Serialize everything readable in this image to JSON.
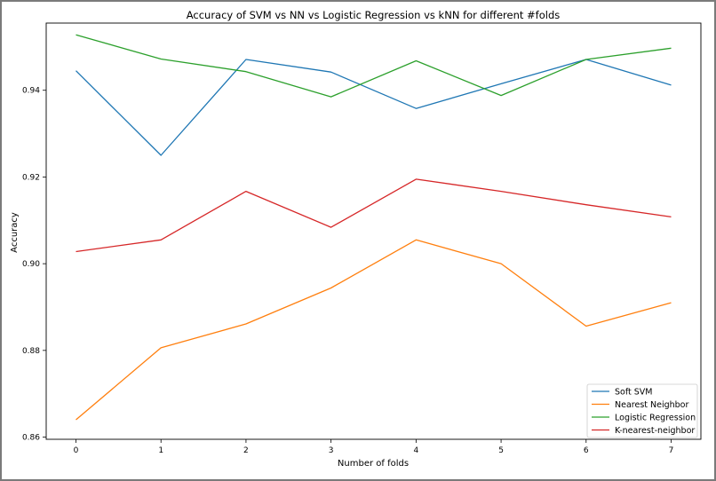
{
  "chart_data": {
    "type": "line",
    "title": "Accuracy of SVM vs NN vs Logistic Regression vs kNN for different #folds",
    "xlabel": "Number of folds",
    "ylabel": "Accuracy",
    "x": [
      0,
      1,
      2,
      3,
      4,
      5,
      6,
      7
    ],
    "xticks": [
      "0",
      "1",
      "2",
      "3",
      "4",
      "5",
      "6",
      "7"
    ],
    "yticks": [
      "0.86",
      "0.88",
      "0.90",
      "0.92",
      "0.94"
    ],
    "ytick_values": [
      0.86,
      0.88,
      0.9,
      0.92,
      0.94
    ],
    "xlim": [
      -0.35,
      7.35
    ],
    "ylim": [
      0.8595,
      0.9555
    ],
    "grid": false,
    "legend_position": "lower-right",
    "series": [
      {
        "name": "Soft SVM",
        "color": "#1f77b4",
        "values": [
          0.9445,
          0.925,
          0.9471,
          0.9442,
          0.9358,
          0.9415,
          0.9471,
          0.9412
        ]
      },
      {
        "name": "Nearest Neighbor",
        "color": "#ff7f0e",
        "values": [
          0.864,
          0.8806,
          0.8861,
          0.8944,
          0.9055,
          0.9,
          0.8856,
          0.891
        ]
      },
      {
        "name": "Logistic Regression",
        "color": "#2ca02c",
        "values": [
          0.9528,
          0.9472,
          0.9443,
          0.9385,
          0.9468,
          0.9388,
          0.9471,
          0.9497
        ]
      },
      {
        "name": "K-nearest-neighbor",
        "color": "#d62728",
        "values": [
          0.9028,
          0.9055,
          0.9167,
          0.9084,
          0.9195,
          0.9167,
          0.9136,
          0.9108
        ]
      }
    ]
  }
}
